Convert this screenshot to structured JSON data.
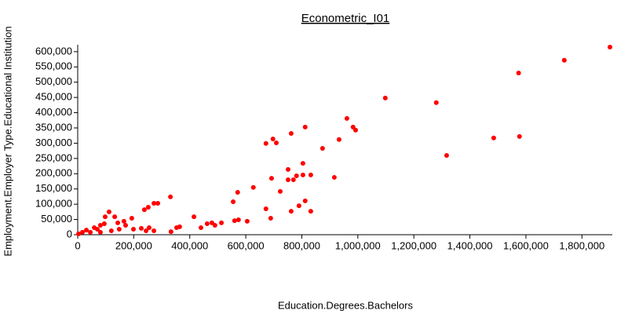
{
  "chart_data": {
    "type": "scatter",
    "title": "Econometric_I01",
    "x_label": "Education.Degrees.Bachelors",
    "y_label": "Employment.Employer Type.Educational Institution",
    "color": "#ff0000",
    "xlim": [
      0,
      1900000
    ],
    "ylim": [
      0,
      615000
    ],
    "xticks": [
      0,
      {
        "value": 200000,
        "label": "200,000"
      },
      {
        "value": 400000,
        "label": "400,000"
      },
      {
        "value": 600000,
        "label": "600,000"
      },
      {
        "value": 800000,
        "label": "800,000"
      },
      {
        "value": 1000000,
        "label": "1,000,000"
      },
      {
        "value": 1200000,
        "label": "1,200,000"
      },
      {
        "value": 1400000,
        "label": "1,400,000"
      },
      {
        "value": 1600000,
        "label": "1,600,000"
      },
      {
        "value": 1800000,
        "label": "1,800,000"
      }
    ],
    "yticks": [
      0,
      {
        "value": 50000,
        "label": "50,000"
      },
      {
        "value": 100000,
        "label": "100,000"
      },
      {
        "value": 150000,
        "label": "150,000"
      },
      {
        "value": 200000,
        "label": "200,000"
      },
      {
        "value": 250000,
        "label": "250,000"
      },
      {
        "value": 300000,
        "label": "300,000"
      },
      {
        "value": 350000,
        "label": "350,000"
      },
      {
        "value": 400000,
        "label": "400,000"
      },
      {
        "value": 450000,
        "label": "450,000"
      },
      {
        "value": 500000,
        "label": "500,000"
      },
      {
        "value": 550000,
        "label": "550,000"
      },
      {
        "value": 600000,
        "label": "600,000"
      }
    ],
    "x": [
      1900000,
      1737000,
      1574000,
      1577000,
      1485000,
      1317000,
      1280000,
      1098000,
      961000,
      983000,
      992000,
      933000,
      874000,
      916000,
      812000,
      762000,
      697000,
      709000,
      672000,
      804000,
      832000,
      804000,
      781000,
      751000,
      751000,
      770000,
      692000,
      723000,
      627000,
      571000,
      555000,
      812000,
      790000,
      762000,
      832000,
      672000,
      689000,
      605000,
      560000,
      574000,
      331000,
      286000,
      272000,
      252000,
      238000,
      415000,
      364000,
      353000,
      333000,
      462000,
      479000,
      513000,
      490000,
      440000,
      255000,
      244000,
      272000,
      112000,
      98000,
      132000,
      193000,
      165000,
      171000,
      199000,
      148000,
      81000,
      59000,
      70000,
      31000,
      17000,
      3000,
      45000,
      120000,
      95000,
      143000,
      81000,
      227000
    ],
    "values": [
      615000,
      572000,
      530000,
      322000,
      317000,
      260000,
      433000,
      448000,
      381000,
      353000,
      343000,
      312000,
      283000,
      188000,
      353000,
      332000,
      314000,
      301000,
      299000,
      234000,
      196000,
      196000,
      193000,
      214000,
      180000,
      180000,
      185000,
      142000,
      155000,
      139000,
      108000,
      111000,
      95000,
      77000,
      77000,
      85000,
      54000,
      44000,
      46000,
      49000,
      124000,
      103000,
      103000,
      90000,
      82000,
      59000,
      26000,
      23000,
      10000,
      36000,
      39000,
      39000,
      31000,
      23000,
      23000,
      13000,
      13000,
      75000,
      59000,
      59000,
      54000,
      44000,
      31000,
      18000,
      18000,
      31000,
      23000,
      18000,
      15000,
      8000,
      3000,
      8000,
      13000,
      36000,
      39000,
      8000,
      21000
    ]
  }
}
